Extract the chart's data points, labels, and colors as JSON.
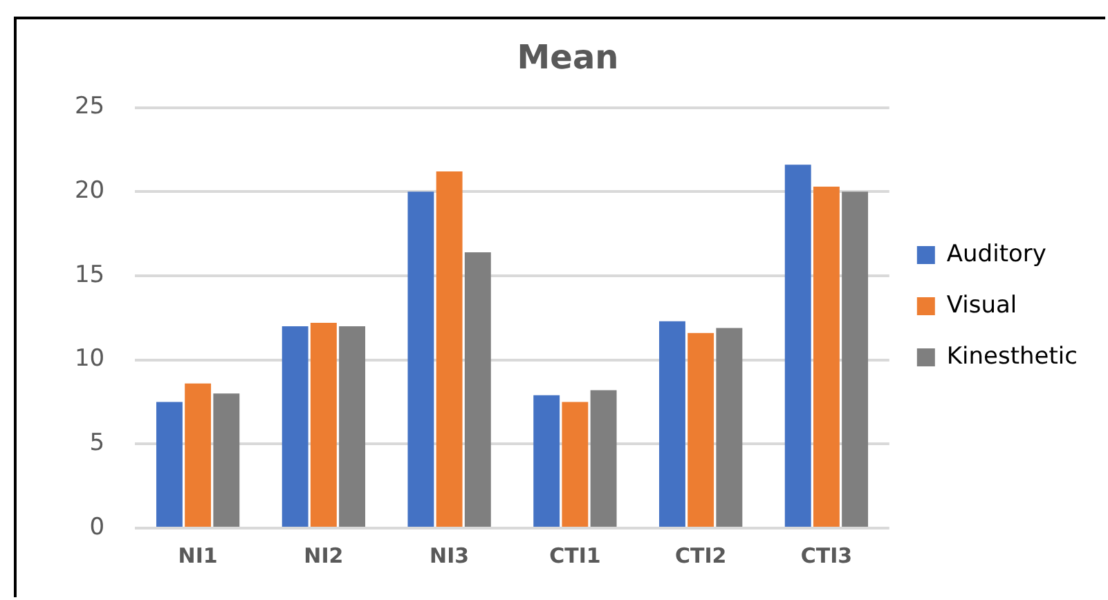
{
  "chart_data": {
    "type": "bar",
    "title": "Mean",
    "categories": [
      "NI1",
      "NI2",
      "NI3",
      "CTI1",
      "CTI2",
      "CTI3"
    ],
    "series": [
      {
        "name": "Auditory",
        "color": "#4472c4",
        "values": [
          7.5,
          12.0,
          20.0,
          7.9,
          12.3,
          21.6
        ]
      },
      {
        "name": "Visual",
        "color": "#ed7d31",
        "values": [
          8.6,
          12.2,
          21.2,
          7.5,
          11.6,
          20.3
        ]
      },
      {
        "name": "Kinesthetic",
        "color": "#7f7f7f",
        "values": [
          8.0,
          12.0,
          16.4,
          8.2,
          11.9,
          20.0
        ]
      }
    ],
    "ylim": [
      0,
      25
    ],
    "yticks": [
      0,
      5,
      10,
      15,
      20,
      25
    ],
    "grid": "y",
    "legend": "right"
  }
}
